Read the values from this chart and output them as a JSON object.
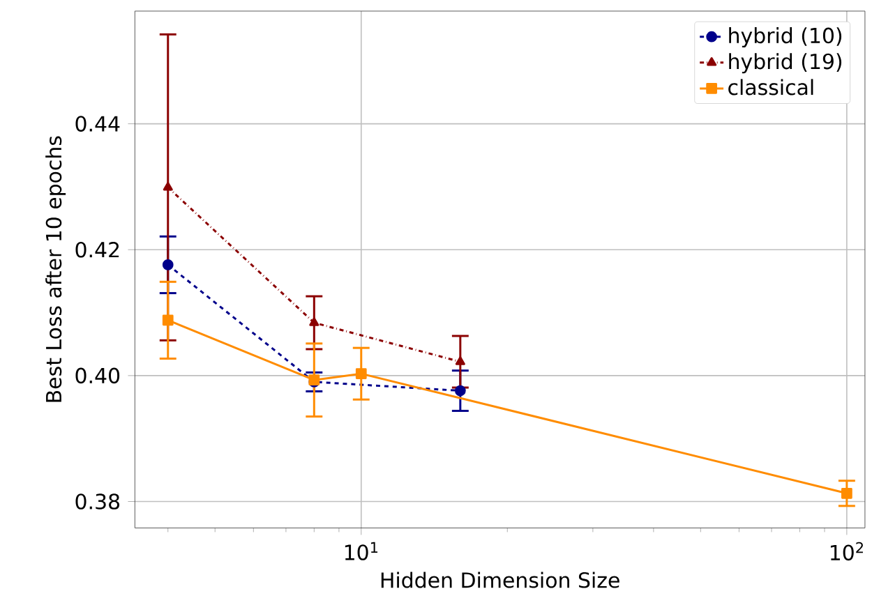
{
  "chart_data": {
    "type": "line",
    "xlabel": "Hidden Dimension Size",
    "ylabel": "Best Loss after 10 epochs",
    "log": "x",
    "grid": true,
    "legend": "top right",
    "xlim": [
      3.42,
      109
    ],
    "ylim": [
      0.3758,
      0.4579
    ],
    "xticks": [
      {
        "value": 10,
        "label": "10$^{1}$"
      },
      {
        "value": 100,
        "label": "10$^{2}$"
      }
    ],
    "yticks": [
      0.38,
      {
        "value": 0.4,
        "label": "0.40"
      },
      0.42,
      0.44
    ],
    "series": [
      {
        "name": "hybrid (10)",
        "color": "#00008b",
        "marker": "circle",
        "line_style": "dashed",
        "x": [
          4,
          8,
          16
        ],
        "values": [
          0.4176,
          0.399,
          0.3976
        ],
        "errors": [
          0.0045,
          0.0015,
          0.0032
        ]
      },
      {
        "name": "hybrid (19)",
        "color": "#8b0000",
        "marker": "triangle",
        "line_style": "dashdot",
        "x": [
          4,
          8,
          16
        ],
        "values": [
          0.4299,
          0.4084,
          0.4022
        ],
        "errors": [
          0.0243,
          0.0042,
          0.0041
        ]
      },
      {
        "name": "classical",
        "color": "#ff8c00",
        "marker": "square",
        "line_style": "solid",
        "x": [
          4,
          8,
          10,
          100
        ],
        "values": [
          0.4088,
          0.3993,
          0.4003,
          0.3813
        ],
        "errors": [
          0.0061,
          0.0058,
          0.0041,
          0.002
        ]
      }
    ]
  }
}
